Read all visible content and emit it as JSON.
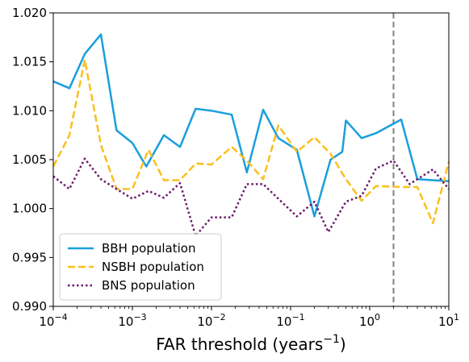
{
  "chart_data": {
    "type": "line",
    "title": "",
    "xlabel": "FAR threshold (years",
    "xlabel_sup": "−1",
    "xlabel_tail": ")",
    "ylabel": "",
    "xscale": "log",
    "xlim": [
      0.0001,
      10
    ],
    "ylim": [
      0.99,
      1.02
    ],
    "grid": false,
    "legend_position": "lower-left",
    "x_ticks": [
      {
        "value": 0.0001,
        "base": "10",
        "exp": "−4"
      },
      {
        "value": 0.001,
        "base": "10",
        "exp": "−3"
      },
      {
        "value": 0.01,
        "base": "10",
        "exp": "−2"
      },
      {
        "value": 0.1,
        "base": "10",
        "exp": "−1"
      },
      {
        "value": 1,
        "base": "10",
        "exp": "0"
      },
      {
        "value": 10,
        "base": "10",
        "exp": "1"
      }
    ],
    "y_ticks": [
      "0.990",
      "0.995",
      "1.000",
      "1.005",
      "1.010",
      "1.015",
      "1.020"
    ],
    "vline": {
      "x": 2,
      "color": "#808080",
      "style": "dashed"
    },
    "x": [
      0.0001,
      0.00016,
      0.00025,
      0.0004,
      0.00063,
      0.001,
      0.0016,
      0.0025,
      0.004,
      0.0063,
      0.01,
      0.016,
      0.025,
      0.04,
      0.063,
      0.1,
      0.16,
      0.25,
      0.4,
      0.63,
      1,
      1.6,
      2.5,
      4,
      6.3,
      10
    ],
    "series": [
      {
        "name": "BBH population",
        "color": "#1a9fdc",
        "style": "solid",
        "points": [
          [
            0.0001,
            1.013
          ],
          [
            0.00016,
            1.0123
          ],
          [
            0.00025,
            1.0158
          ],
          [
            0.0004,
            1.0178
          ],
          [
            0.00063,
            1.008
          ],
          [
            0.001,
            1.0067
          ],
          [
            0.0015,
            1.0043
          ],
          [
            0.0025,
            1.0075
          ],
          [
            0.004,
            1.0063
          ],
          [
            0.0063,
            1.0102
          ],
          [
            0.01,
            1.01
          ],
          [
            0.018,
            1.0096
          ],
          [
            0.028,
            1.0037
          ],
          [
            0.045,
            1.0101
          ],
          [
            0.07,
            1.0072
          ],
          [
            0.12,
            1.006
          ],
          [
            0.2,
            0.9992
          ],
          [
            0.32,
            1.005
          ],
          [
            0.45,
            1.0058
          ],
          [
            0.5,
            1.009
          ],
          [
            0.79,
            1.0072
          ],
          [
            1.2,
            1.0077
          ],
          [
            2.5,
            1.0091
          ],
          [
            4,
            1.003
          ],
          [
            6.3,
            1.0029
          ],
          [
            10,
            1.0028
          ]
        ]
      },
      {
        "name": "NSBH population",
        "color": "#fbbf1d",
        "style": "dashed",
        "points": [
          [
            0.0001,
            1.0043
          ],
          [
            0.00016,
            1.0075
          ],
          [
            0.00025,
            1.0152
          ],
          [
            0.0004,
            1.0065
          ],
          [
            0.00063,
            1.002
          ],
          [
            0.001,
            1.002
          ],
          [
            0.0016,
            1.006
          ],
          [
            0.0025,
            1.0029
          ],
          [
            0.004,
            1.0029
          ],
          [
            0.0063,
            1.0046
          ],
          [
            0.01,
            1.0045
          ],
          [
            0.018,
            1.0063
          ],
          [
            0.028,
            1.0049
          ],
          [
            0.045,
            1.003
          ],
          [
            0.07,
            1.0085
          ],
          [
            0.12,
            1.0058
          ],
          [
            0.2,
            1.0073
          ],
          [
            0.32,
            1.0056
          ],
          [
            0.5,
            1.003
          ],
          [
            0.79,
            1.0008
          ],
          [
            1.2,
            1.0023
          ],
          [
            2.5,
            1.0022
          ],
          [
            4,
            1.0022
          ],
          [
            6.3,
            0.9985
          ],
          [
            10,
            1.0048
          ]
        ]
      },
      {
        "name": "BNS population",
        "color": "#6b1a6b",
        "style": "dotted",
        "points": [
          [
            0.0001,
            1.0033
          ],
          [
            0.00016,
            1.002
          ],
          [
            0.00025,
            1.0051
          ],
          [
            0.0004,
            1.003
          ],
          [
            0.00063,
            1.002
          ],
          [
            0.001,
            1.001
          ],
          [
            0.0016,
            1.0018
          ],
          [
            0.0025,
            1.0011
          ],
          [
            0.004,
            1.0026
          ],
          [
            0.0063,
            0.9972
          ],
          [
            0.01,
            0.9991
          ],
          [
            0.018,
            0.9991
          ],
          [
            0.028,
            1.0025
          ],
          [
            0.045,
            1.0025
          ],
          [
            0.07,
            1.001
          ],
          [
            0.12,
            0.9992
          ],
          [
            0.2,
            1.0007
          ],
          [
            0.3,
            0.9976
          ],
          [
            0.5,
            1.0007
          ],
          [
            0.79,
            1.0013
          ],
          [
            1.2,
            1.0041
          ],
          [
            2,
            1.0049
          ],
          [
            3.2,
            1.0025
          ],
          [
            6.3,
            1.004
          ],
          [
            10,
            1.002
          ]
        ]
      }
    ]
  }
}
